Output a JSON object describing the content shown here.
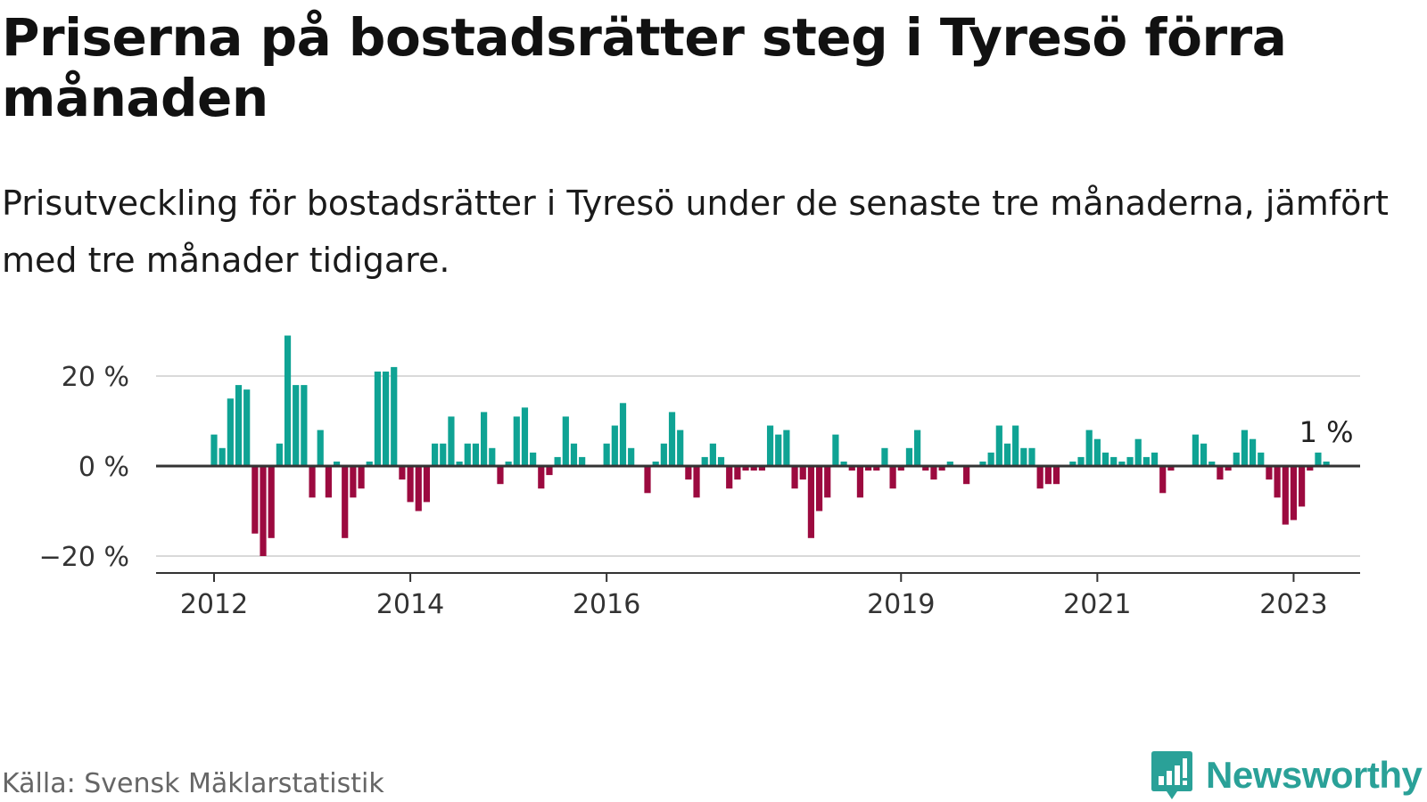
{
  "title": "Priserna på bostadsrätter steg i Tyresö förra månaden",
  "subtitle": "Prisutveckling för bostadsrätter i Tyresö under de senaste tre månaderna, jämfört med tre månader tidigare.",
  "source": "Källa: Svensk Mäklarstatistik",
  "logo_text": "Newsworthy",
  "colors": {
    "positive": "#0fa394",
    "negative": "#9c0a3f",
    "grid": "#d9d9d9",
    "axis": "#333333",
    "logo": "#2aa198"
  },
  "chart_data": {
    "type": "bar",
    "title": "Priserna på bostadsrätter steg i Tyresö förra månaden",
    "xlabel": "",
    "ylabel": "",
    "ylim": [
      -24,
      29
    ],
    "grid": true,
    "x_tick_labels": [
      "2012",
      "2014",
      "2016",
      "2019",
      "2021",
      "2023"
    ],
    "y_ticks": [
      -20,
      0,
      20
    ],
    "y_tick_labels": [
      "−20 %",
      "0 %",
      "20 %"
    ],
    "start_month": "2012-01",
    "annotation": {
      "label": "1 %",
      "value": 1
    },
    "series": [
      {
        "values": [
          7,
          4,
          15,
          18,
          17,
          -15,
          -20,
          -16,
          5,
          29,
          18,
          18,
          -7,
          8,
          -7,
          1,
          -16,
          -7,
          -5,
          1,
          21,
          21,
          22,
          -3,
          -8,
          -10,
          -8,
          5,
          5,
          11,
          1,
          5,
          5,
          12,
          4,
          -4,
          1,
          11,
          13,
          3,
          -5,
          -2,
          2,
          11,
          5,
          2,
          0,
          0,
          5,
          9,
          14,
          4,
          0,
          -6,
          1,
          5,
          12,
          8,
          -3,
          -7,
          2,
          5,
          2,
          -5,
          -3,
          -1,
          -1,
          -1,
          9,
          7,
          8,
          -5,
          -3,
          -16,
          -10,
          -7,
          7,
          1,
          -1,
          -7,
          -1,
          -1,
          4,
          -5,
          -1,
          4,
          8,
          -1,
          -3,
          -1,
          1,
          0,
          -4,
          0,
          1,
          3,
          9,
          5,
          9,
          4,
          4,
          -5,
          -4,
          -4,
          0,
          1,
          2,
          8,
          6,
          3,
          2,
          1,
          2,
          6,
          2,
          3,
          -6,
          -1,
          0,
          0,
          7,
          5,
          1,
          -3,
          -1,
          3,
          8,
          6,
          3,
          -3,
          -7,
          -13,
          -12,
          -9,
          -1,
          3,
          1
        ]
      }
    ]
  }
}
